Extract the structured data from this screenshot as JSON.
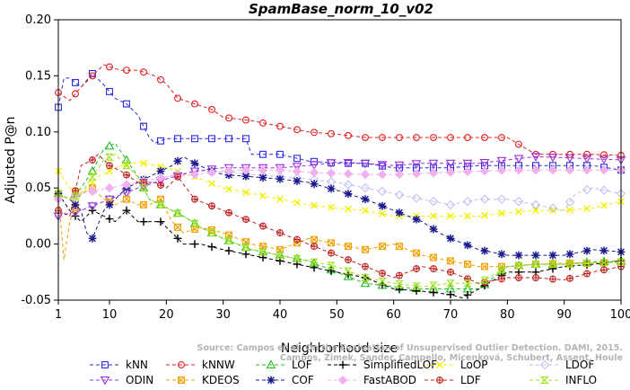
{
  "chart_data": {
    "type": "line",
    "title": "SpamBase_norm_10_v02",
    "xlabel": "Neighborhood size",
    "ylabel": "Adjusted P@n",
    "xlim": [
      1,
      100
    ],
    "ylim": [
      -0.05,
      0.2
    ],
    "xticks": [
      1,
      10,
      20,
      30,
      40,
      50,
      60,
      70,
      80,
      90,
      100
    ],
    "yticks": [
      "-0.05",
      "0.00",
      "0.05",
      "0.10",
      "0.15",
      "0.20"
    ],
    "watermark": [
      "Source: Campos et al. On the Evaluation of Unsupervised Outlier Detection. DAMI, 2015.",
      "Campos, Zimek, Sander, Campello, Micenková, Schubert, Assent, Houle"
    ],
    "series": [
      {
        "name": "kNN",
        "color": "#2a2ae0",
        "marker": "square",
        "x": [
          1,
          2,
          3,
          5,
          7,
          9,
          11,
          13,
          15,
          17,
          18,
          20,
          25,
          30,
          34,
          35,
          40,
          45,
          50,
          55,
          60,
          65,
          70,
          75,
          80,
          85,
          90,
          95,
          100
        ],
        "y": [
          0.122,
          0.148,
          0.148,
          0.14,
          0.152,
          0.142,
          0.13,
          0.125,
          0.115,
          0.095,
          0.09,
          0.094,
          0.094,
          0.094,
          0.094,
          0.08,
          0.08,
          0.074,
          0.072,
          0.072,
          0.068,
          0.068,
          0.068,
          0.07,
          0.07,
          0.07,
          0.07,
          0.07,
          0.066
        ]
      },
      {
        "name": "kNNW",
        "color": "#e02020",
        "marker": "circle",
        "x": [
          1,
          3,
          5,
          7,
          9,
          10,
          12,
          15,
          18,
          20,
          22,
          25,
          28,
          30,
          35,
          40,
          45,
          50,
          55,
          60,
          65,
          70,
          75,
          80,
          85,
          90,
          95,
          100
        ],
        "y": [
          0.135,
          0.128,
          0.14,
          0.15,
          0.16,
          0.158,
          0.155,
          0.155,
          0.15,
          0.143,
          0.13,
          0.125,
          0.12,
          0.113,
          0.11,
          0.105,
          0.1,
          0.098,
          0.095,
          0.095,
          0.095,
          0.095,
          0.095,
          0.095,
          0.08,
          0.08,
          0.08,
          0.079
        ]
      },
      {
        "name": "LOF",
        "color": "#20c020",
        "marker": "triangle",
        "x": [
          1,
          3,
          5,
          7,
          9,
          11,
          13,
          15,
          17,
          19,
          21,
          23,
          26,
          30,
          35,
          40,
          45,
          50,
          55,
          60,
          65,
          70,
          75,
          80,
          85,
          90,
          95,
          100
        ],
        "y": [
          0.045,
          0.04,
          0.05,
          0.065,
          0.085,
          0.09,
          0.075,
          0.06,
          0.04,
          0.035,
          0.03,
          0.025,
          0.015,
          0.005,
          -0.005,
          -0.01,
          -0.015,
          -0.025,
          -0.035,
          -0.038,
          -0.04,
          -0.04,
          -0.04,
          -0.02,
          -0.018,
          -0.018,
          -0.016,
          -0.015
        ]
      },
      {
        "name": "SimplifiedLOF",
        "color": "#000000",
        "marker": "plus",
        "x": [
          1,
          3,
          5,
          7,
          9,
          11,
          13,
          15,
          17,
          19,
          21,
          23,
          26,
          30,
          35,
          40,
          45,
          50,
          55,
          60,
          65,
          70,
          72,
          75,
          80,
          85,
          90,
          95,
          100
        ],
        "y": [
          0.045,
          0.03,
          0.02,
          0.03,
          0.025,
          0.02,
          0.03,
          0.02,
          0.02,
          0.02,
          0.01,
          0.0,
          0.0,
          -0.005,
          -0.01,
          -0.015,
          -0.02,
          -0.025,
          -0.03,
          -0.04,
          -0.042,
          -0.045,
          -0.048,
          -0.04,
          -0.025,
          -0.025,
          -0.02,
          -0.018,
          -0.015
        ]
      },
      {
        "name": "LoOP",
        "color": "#f0f000",
        "marker": "cross",
        "x": [
          1,
          3,
          5,
          8,
          10,
          12,
          15,
          18,
          20,
          25,
          30,
          35,
          40,
          45,
          50,
          55,
          60,
          65,
          70,
          75,
          80,
          85,
          90,
          95,
          100
        ],
        "y": [
          0.065,
          0.05,
          0.045,
          0.06,
          0.065,
          0.07,
          0.073,
          0.07,
          0.068,
          0.06,
          0.05,
          0.045,
          0.04,
          0.035,
          0.032,
          0.03,
          0.025,
          0.025,
          0.025,
          0.025,
          0.028,
          0.03,
          0.03,
          0.032,
          0.038
        ]
      },
      {
        "name": "LDOF",
        "color": "#c0c0f0",
        "marker": "diamond",
        "x": [
          1,
          5,
          10,
          15,
          20,
          25,
          30,
          35,
          40,
          45,
          50,
          55,
          60,
          65,
          70,
          75,
          80,
          85,
          90,
          92,
          95,
          100
        ],
        "y": [
          0.025,
          0.03,
          0.04,
          0.05,
          0.06,
          0.065,
          0.065,
          0.062,
          0.06,
          0.058,
          0.055,
          0.05,
          0.045,
          0.04,
          0.035,
          0.04,
          0.04,
          0.035,
          0.03,
          0.045,
          0.05,
          0.045
        ]
      },
      {
        "name": "ODIN",
        "color": "#9b30e0",
        "marker": "tridown",
        "x": [
          1,
          5,
          10,
          15,
          20,
          25,
          30,
          35,
          40,
          45,
          50,
          55,
          60,
          65,
          70,
          75,
          80,
          85,
          90,
          95,
          100
        ],
        "y": [
          0.025,
          0.03,
          0.04,
          0.05,
          0.058,
          0.065,
          0.068,
          0.068,
          0.068,
          0.07,
          0.073,
          0.072,
          0.07,
          0.072,
          0.072,
          0.072,
          0.075,
          0.078,
          0.077,
          0.076,
          0.075
        ]
      },
      {
        "name": "KDEOS",
        "color": "#f0a000",
        "marker": "squarex",
        "x": [
          1,
          2,
          3,
          5,
          7,
          9,
          11,
          13,
          15,
          17,
          19,
          21,
          23,
          26,
          30,
          35,
          40,
          45,
          50,
          55,
          60,
          65,
          70,
          75,
          80,
          85,
          90,
          95,
          100
        ],
        "y": [
          0.045,
          -0.014,
          0.02,
          0.045,
          0.05,
          0.04,
          0.035,
          0.04,
          0.035,
          0.035,
          0.04,
          0.02,
          0.01,
          0.015,
          0.01,
          0.0,
          -0.005,
          0.005,
          0.0,
          -0.005,
          0.0,
          -0.01,
          -0.015,
          -0.02,
          -0.02,
          -0.018,
          -0.017,
          -0.017,
          -0.016
        ]
      },
      {
        "name": "COF",
        "color": "#1a1a90",
        "marker": "star",
        "x": [
          1,
          3,
          5,
          6,
          7,
          9,
          11,
          13,
          15,
          17,
          19,
          21,
          23,
          25,
          28,
          30,
          35,
          40,
          45,
          50,
          55,
          60,
          65,
          68,
          70,
          75,
          80,
          85,
          90,
          95,
          100
        ],
        "y": [
          0.045,
          0.04,
          0.03,
          0.01,
          0.005,
          0.03,
          0.04,
          0.05,
          0.055,
          0.06,
          0.065,
          0.07,
          0.078,
          0.072,
          0.065,
          0.062,
          0.06,
          0.058,
          0.055,
          0.048,
          0.04,
          0.03,
          0.02,
          0.01,
          0.005,
          -0.005,
          -0.01,
          -0.01,
          -0.01,
          -0.005,
          -0.007
        ]
      },
      {
        "name": "FastABOD",
        "color": "#f0b0f0",
        "marker": "diamondfill",
        "x": [
          1,
          5,
          10,
          15,
          20,
          25,
          30,
          35,
          40,
          45,
          50,
          55,
          60,
          65,
          70,
          75,
          80,
          85,
          90,
          95,
          100
        ],
        "y": [
          0.04,
          0.045,
          0.05,
          0.055,
          0.06,
          0.062,
          0.065,
          0.066,
          0.066,
          0.064,
          0.063,
          0.062,
          0.062,
          0.063,
          0.064,
          0.065,
          0.066,
          0.066,
          0.066,
          0.066,
          0.066
        ]
      },
      {
        "name": "LDF",
        "color": "#c02020",
        "marker": "circleplus",
        "x": [
          1,
          3,
          5,
          7,
          8,
          10,
          12,
          15,
          18,
          20,
          22,
          25,
          30,
          35,
          40,
          45,
          50,
          55,
          60,
          65,
          70,
          75,
          80,
          85,
          90,
          95,
          100
        ],
        "y": [
          0.03,
          0.025,
          0.07,
          0.075,
          0.08,
          0.07,
          0.065,
          0.055,
          0.055,
          0.05,
          0.06,
          0.04,
          0.03,
          0.02,
          0.01,
          0.0,
          -0.01,
          -0.02,
          -0.03,
          -0.02,
          -0.025,
          -0.035,
          -0.03,
          -0.03,
          -0.032,
          -0.025,
          -0.02
        ]
      },
      {
        "name": "INFLO",
        "color": "#a0e020",
        "marker": "hourglass",
        "x": [
          1,
          3,
          5,
          7,
          9,
          11,
          13,
          15,
          17,
          19,
          21,
          23,
          26,
          30,
          35,
          40,
          45,
          50,
          55,
          60,
          65,
          70,
          75,
          80,
          85,
          90,
          95,
          100
        ],
        "y": [
          0.045,
          0.04,
          0.045,
          0.06,
          0.075,
          0.08,
          0.07,
          0.06,
          0.04,
          0.035,
          0.03,
          0.025,
          0.015,
          0.005,
          -0.005,
          -0.01,
          -0.015,
          -0.02,
          -0.03,
          -0.035,
          -0.038,
          -0.035,
          -0.035,
          -0.02,
          -0.018,
          -0.018,
          -0.017,
          -0.016
        ]
      }
    ],
    "legend": {
      "placement": "bottom",
      "columns": 4
    }
  }
}
